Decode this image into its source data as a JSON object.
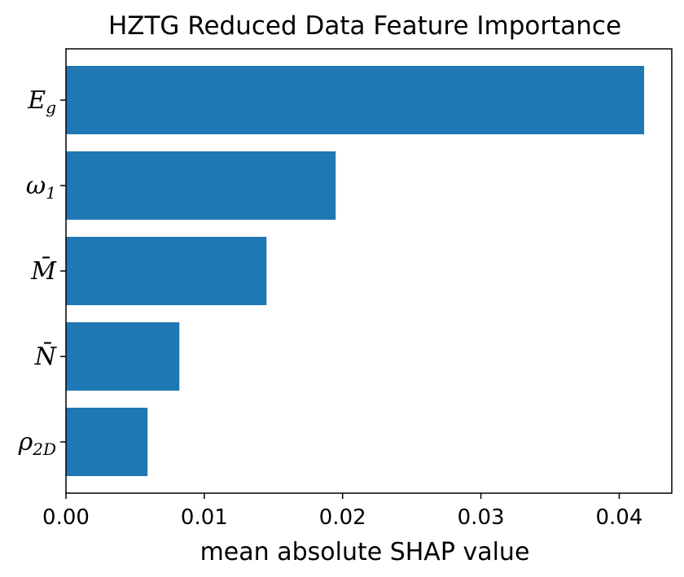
{
  "chart_data": {
    "type": "bar",
    "orientation": "horizontal",
    "title": "HZTG Reduced Data Feature Importance",
    "xlabel": "mean absolute SHAP value",
    "ylabel": "",
    "xlim": [
      0,
      0.0438
    ],
    "xticks": [
      "0.00",
      "0.01",
      "0.02",
      "0.03",
      "0.04"
    ],
    "grid": false,
    "bar_color": "#1f77b4",
    "categories": [
      {
        "base": "E",
        "sub": "g",
        "overbar": false
      },
      {
        "base": "ω",
        "sub": "1",
        "overbar": false
      },
      {
        "base": "M",
        "sub": "",
        "overbar": true
      },
      {
        "base": "N",
        "sub": "",
        "overbar": true
      },
      {
        "base": "ρ",
        "sub": "2D",
        "overbar": false
      }
    ],
    "values": [
      0.0418,
      0.0195,
      0.0145,
      0.0082,
      0.0059
    ]
  }
}
